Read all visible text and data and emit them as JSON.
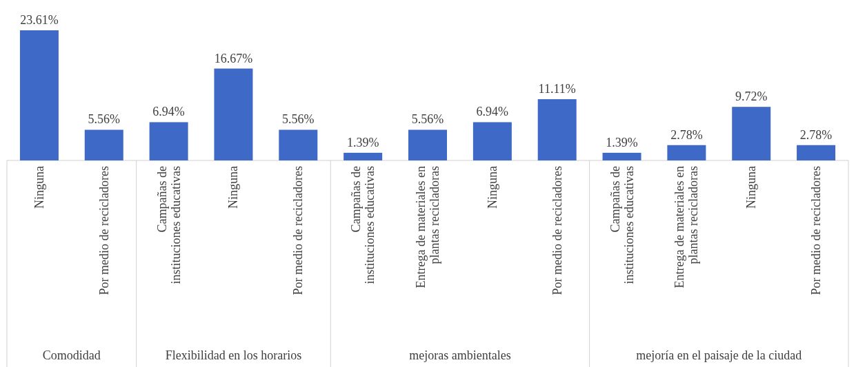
{
  "chart_data": [
    {
      "type": "bar",
      "xlabel": "Comodidad",
      "categories": [
        "Ninguna",
        "Por medio de recicladores"
      ],
      "values": [
        23.61,
        5.56
      ],
      "value_labels": [
        "23.61%",
        "5.56%"
      ],
      "color": "#3f69c6"
    },
    {
      "type": "bar",
      "xlabel": "Flexibilidad en los horarios",
      "categories": [
        "Campañas de instituciones educativas",
        "Ninguna",
        "Por medio de recicladores"
      ],
      "values": [
        6.94,
        16.67,
        5.56
      ],
      "value_labels": [
        "6.94%",
        "16.67%",
        "5.56%"
      ],
      "color": "#3f69c6"
    },
    {
      "type": "bar",
      "xlabel": "mejoras ambientales",
      "categories": [
        "Campañas de instituciones educativas",
        "Entrega de materiales en plantas recicladoras",
        "Ninguna",
        "Por medio de recicladores"
      ],
      "values": [
        1.39,
        5.56,
        6.94,
        11.11
      ],
      "value_labels": [
        "1.39%",
        "5.56%",
        "6.94%",
        "11.11%"
      ],
      "color": "#3f69c6"
    },
    {
      "type": "bar",
      "xlabel": "mejoría en el paisaje de la ciudad",
      "categories": [
        "Campañas de instituciones educativas",
        "Entrega de materiales en plantas recicladoras",
        "Ninguna",
        "Por medio de recicladores"
      ],
      "values": [
        1.39,
        2.78,
        9.72,
        2.78
      ],
      "value_labels": [
        "1.39%",
        "2.78%",
        "9.72%",
        "2.78%"
      ],
      "color": "#3f69c6"
    }
  ]
}
